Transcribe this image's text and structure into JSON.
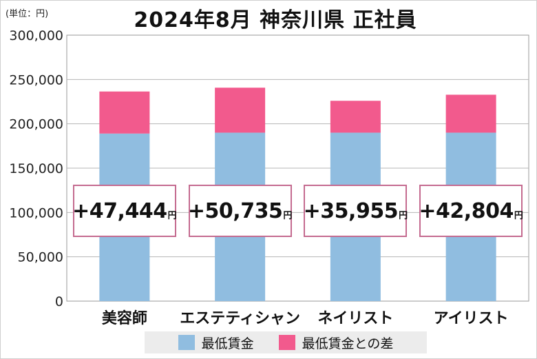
{
  "unit_label": "(単位：円)",
  "title": "2024年8月 神奈川県 正社員",
  "chart_data": {
    "type": "bar",
    "stacked": true,
    "categories": [
      "美容師",
      "エステティシャン",
      "ネイリスト",
      "アイリスト"
    ],
    "series": [
      {
        "name": "最低賃金",
        "color": "#90bde0",
        "values": [
          189000,
          190000,
          190000,
          190000
        ]
      },
      {
        "name": "最低賃金との差",
        "color": "#f25a8d",
        "values": [
          47444,
          50735,
          35955,
          42804
        ]
      }
    ],
    "ylim": [
      0,
      300000
    ],
    "yticks": [
      "0",
      "50,000",
      "100,000",
      "150,000",
      "200,000",
      "250,000",
      "300,000"
    ],
    "grid": true,
    "legend_position": "bottom",
    "annotations": [
      {
        "text": "+47,444",
        "unit": "円"
      },
      {
        "text": "+50,735",
        "unit": "円"
      },
      {
        "text": "+35,955",
        "unit": "円"
      },
      {
        "text": "+42,804",
        "unit": "円"
      }
    ]
  }
}
